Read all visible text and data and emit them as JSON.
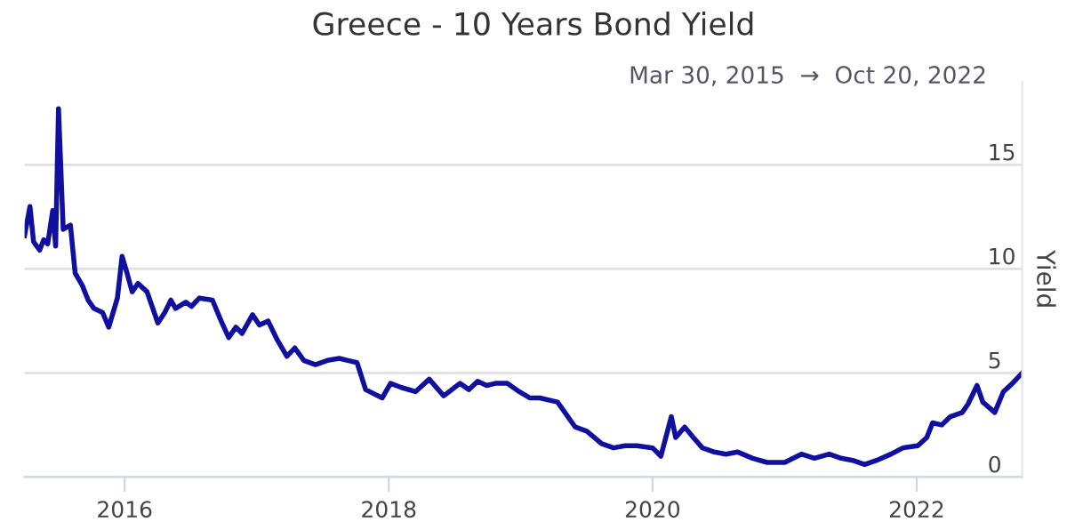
{
  "chart_data": {
    "type": "line",
    "title": "Greece - 10 Years Bond Yield",
    "subtitle": "Mar 30, 2015  →  Oct 20, 2022",
    "ylabel": "Yield",
    "x": [
      "2015-03-30",
      "2015-04-14",
      "2015-04-24",
      "2015-05-11",
      "2015-05-22",
      "2015-06-02",
      "2015-06-16",
      "2015-06-24",
      "2015-07-02",
      "2015-07-15",
      "2015-08-04",
      "2015-08-17",
      "2015-09-06",
      "2015-09-22",
      "2015-10-08",
      "2015-11-01",
      "2015-11-18",
      "2015-12-12",
      "2015-12-25",
      "2016-01-06",
      "2016-01-22",
      "2016-02-07",
      "2016-03-03",
      "2016-04-02",
      "2016-04-21",
      "2016-05-08",
      "2016-05-21",
      "2016-06-18",
      "2016-07-04",
      "2016-07-26",
      "2016-08-31",
      "2016-09-24",
      "2016-10-15",
      "2016-11-04",
      "2016-11-21",
      "2016-12-20",
      "2017-01-08",
      "2017-02-01",
      "2017-02-26",
      "2017-03-25",
      "2017-04-16",
      "2017-05-11",
      "2017-06-12",
      "2017-07-15",
      "2017-08-17",
      "2017-09-10",
      "2017-10-05",
      "2017-10-29",
      "2017-12-14",
      "2018-01-06",
      "2018-02-05",
      "2018-03-16",
      "2018-04-23",
      "2018-06-02",
      "2018-07-17",
      "2018-08-11",
      "2018-09-04",
      "2018-09-29",
      "2018-10-23",
      "2018-11-25",
      "2018-12-28",
      "2019-01-26",
      "2019-02-23",
      "2019-04-13",
      "2019-06-01",
      "2019-07-03",
      "2019-08-13",
      "2019-09-15",
      "2019-10-17",
      "2019-11-19",
      "2020-01-01",
      "2020-01-24",
      "2020-02-22",
      "2020-03-05",
      "2020-03-30",
      "2020-04-23",
      "2020-05-18",
      "2020-06-20",
      "2020-07-22",
      "2020-08-24",
      "2020-10-04",
      "2020-11-13",
      "2021-01-01",
      "2021-02-16",
      "2021-03-24",
      "2021-05-04",
      "2021-06-06",
      "2021-07-08",
      "2021-08-10",
      "2021-09-12",
      "2021-10-22",
      "2021-11-24",
      "2022-01-04",
      "2022-01-29",
      "2022-02-14",
      "2022-03-11",
      "2022-04-04",
      "2022-05-07",
      "2022-05-23",
      "2022-06-17",
      "2022-07-03",
      "2022-08-05",
      "2022-08-29",
      "2022-09-23",
      "2022-10-20"
    ],
    "series": [
      {
        "color": "#1010a0",
        "values": [
          11.6,
          13.0,
          11.3,
          10.9,
          11.4,
          11.2,
          12.8,
          11.1,
          17.7,
          11.9,
          12.1,
          9.8,
          9.2,
          8.5,
          8.1,
          7.9,
          7.2,
          8.6,
          10.6,
          9.9,
          8.9,
          9.3,
          8.9,
          7.4,
          7.9,
          8.5,
          8.1,
          8.4,
          8.2,
          8.6,
          8.5,
          7.5,
          6.7,
          7.2,
          6.9,
          7.8,
          7.3,
          7.5,
          6.6,
          5.8,
          6.2,
          5.6,
          5.4,
          5.6,
          5.7,
          5.6,
          5.5,
          4.2,
          3.8,
          4.5,
          4.3,
          4.1,
          4.7,
          3.9,
          4.5,
          4.2,
          4.6,
          4.4,
          4.5,
          4.5,
          4.1,
          3.8,
          3.8,
          3.6,
          2.4,
          2.2,
          1.6,
          1.4,
          1.5,
          1.5,
          1.4,
          1.0,
          2.9,
          1.9,
          2.4,
          1.9,
          1.4,
          1.2,
          1.1,
          1.2,
          0.9,
          0.7,
          0.7,
          1.1,
          0.9,
          1.1,
          0.9,
          0.8,
          0.6,
          0.8,
          1.1,
          1.4,
          1.5,
          1.9,
          2.6,
          2.5,
          2.9,
          3.1,
          3.5,
          4.4,
          3.6,
          3.1,
          4.1,
          4.5,
          5.0
        ]
      }
    ],
    "xlim": [
      "2015-03-30",
      "2022-10-20"
    ],
    "xticks": [
      {
        "value": "2016-01-01",
        "label": "2016"
      },
      {
        "value": "2018-01-01",
        "label": "2018"
      },
      {
        "value": "2020-01-01",
        "label": "2020"
      },
      {
        "value": "2022-01-01",
        "label": "2022"
      }
    ],
    "ylim": [
      0,
      19
    ],
    "yticks": [
      0,
      5,
      10,
      15
    ],
    "grid": "y"
  }
}
